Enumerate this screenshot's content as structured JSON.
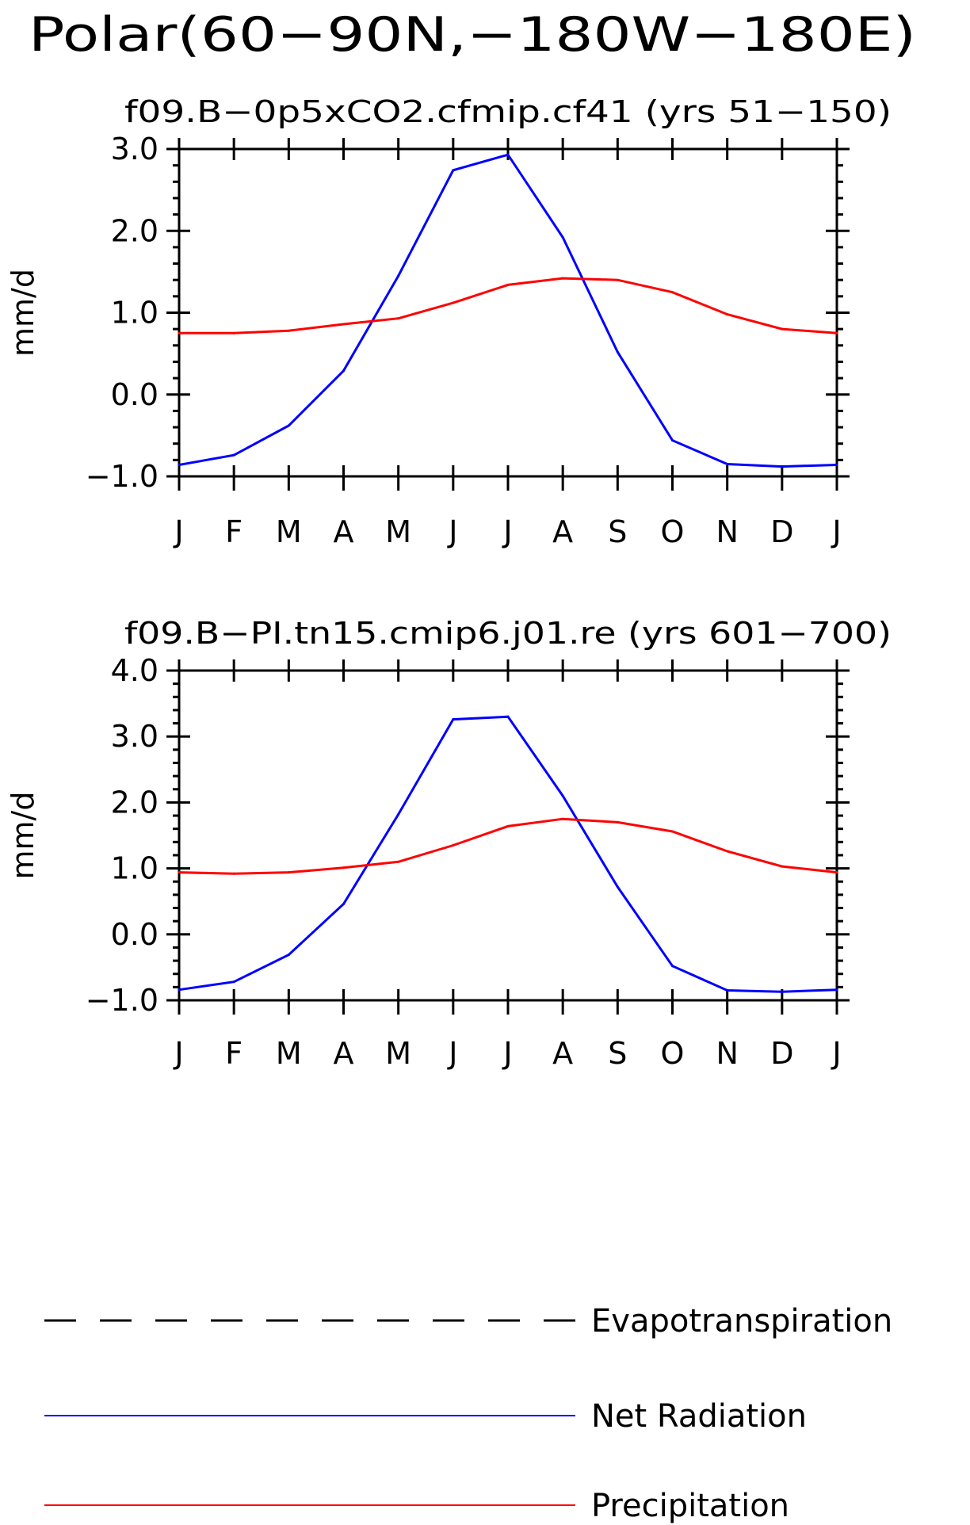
{
  "page_title": "Polar(60−90N,−180W−180E)",
  "chart_data": [
    {
      "type": "line",
      "title": "f09.B−0p5xCO2.cfmip.cf41 (yrs 51−150)",
      "ylabel": "mm/d",
      "xlabel": "",
      "categories": [
        "J",
        "F",
        "M",
        "A",
        "M",
        "J",
        "J",
        "A",
        "S",
        "O",
        "N",
        "D",
        "J"
      ],
      "ylim": [
        -1.0,
        3.0
      ],
      "yticks": [
        -1.0,
        0.0,
        1.0,
        2.0,
        3.0
      ],
      "ytick_labels": [
        "−1.0",
        "0.0",
        "1.0",
        "2.0",
        "3.0"
      ],
      "grid": false,
      "series": [
        {
          "name": "Net Radiation",
          "color": "#0000ff",
          "values": [
            -0.86,
            -0.74,
            -0.38,
            0.29,
            1.45,
            2.74,
            2.93,
            1.92,
            0.52,
            -0.56,
            -0.85,
            -0.88,
            -0.86
          ]
        },
        {
          "name": "Precipitation",
          "color": "#ff0000",
          "values": [
            0.75,
            0.75,
            0.78,
            0.86,
            0.93,
            1.12,
            1.34,
            1.42,
            1.4,
            1.25,
            0.98,
            0.8,
            0.75
          ]
        }
      ]
    },
    {
      "type": "line",
      "title": "f09.B−PI.tn15.cmip6.j01.re (yrs 601−700)",
      "ylabel": "mm/d",
      "xlabel": "",
      "categories": [
        "J",
        "F",
        "M",
        "A",
        "M",
        "J",
        "J",
        "A",
        "S",
        "O",
        "N",
        "D",
        "J"
      ],
      "ylim": [
        -1.0,
        4.0
      ],
      "yticks": [
        -1.0,
        0.0,
        1.0,
        2.0,
        3.0,
        4.0
      ],
      "ytick_labels": [
        "−1.0",
        "0.0",
        "1.0",
        "2.0",
        "3.0",
        "4.0"
      ],
      "grid": false,
      "series": [
        {
          "name": "Net Radiation",
          "color": "#0000ff",
          "values": [
            -0.84,
            -0.72,
            -0.31,
            0.46,
            1.82,
            3.26,
            3.3,
            2.1,
            0.72,
            -0.48,
            -0.85,
            -0.87,
            -0.84
          ]
        },
        {
          "name": "Precipitation",
          "color": "#ff0000",
          "values": [
            0.94,
            0.92,
            0.94,
            1.01,
            1.1,
            1.35,
            1.64,
            1.75,
            1.7,
            1.56,
            1.26,
            1.03,
            0.94
          ]
        }
      ]
    }
  ],
  "legend": {
    "items": [
      {
        "label": "Evapotranspiration",
        "color": "#000000",
        "style": "dashed"
      },
      {
        "label": "Net Radiation",
        "color": "#0000ff",
        "style": "solid"
      },
      {
        "label": "Precipitation",
        "color": "#ff0000",
        "style": "solid"
      }
    ]
  }
}
